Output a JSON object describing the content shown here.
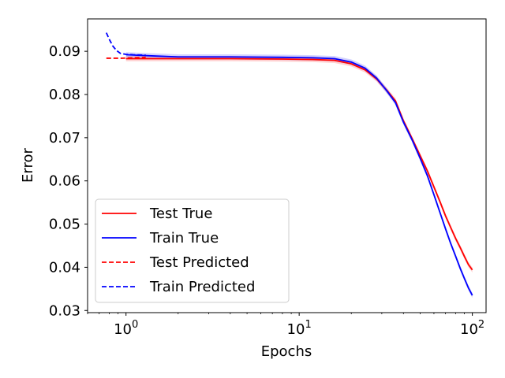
{
  "chart_data": {
    "type": "line",
    "title": "",
    "xlabel": "Epochs",
    "ylabel": "Error",
    "xscale": "log",
    "xlim": [
      0.6,
      120
    ],
    "ylim": [
      0.0295,
      0.0975
    ],
    "x_ticks": [
      {
        "value": 1,
        "base": "10",
        "exp": "0"
      },
      {
        "value": 10,
        "base": "10",
        "exp": "1"
      },
      {
        "value": 100,
        "base": "10",
        "exp": "2"
      }
    ],
    "y_ticks": [
      {
        "value": 0.03,
        "label": "0.03"
      },
      {
        "value": 0.04,
        "label": "0.04"
      },
      {
        "value": 0.05,
        "label": "0.05"
      },
      {
        "value": 0.06,
        "label": "0.06"
      },
      {
        "value": 0.07,
        "label": "0.07"
      },
      {
        "value": 0.08,
        "label": "0.08"
      },
      {
        "value": 0.09,
        "label": "0.09"
      }
    ],
    "grid": false,
    "legend_position": "lower-left",
    "series": [
      {
        "name": "Test True",
        "color": "#ff0000",
        "style": "solid",
        "x": [
          1,
          2,
          4,
          8,
          12,
          16,
          20,
          24,
          28,
          32,
          36,
          40,
          45,
          50,
          55,
          60,
          65,
          70,
          75,
          80,
          85,
          90,
          95,
          100
        ],
        "y": [
          0.0883,
          0.0883,
          0.0883,
          0.0882,
          0.0881,
          0.0879,
          0.0871,
          0.0857,
          0.0836,
          0.081,
          0.0785,
          0.0739,
          0.0697,
          0.0658,
          0.0623,
          0.0586,
          0.0552,
          0.0519,
          0.0492,
          0.0467,
          0.0446,
          0.0425,
          0.0406,
          0.0394
        ]
      },
      {
        "name": "Train True",
        "color": "#0000ff",
        "style": "solid",
        "x": [
          1,
          1.5,
          2,
          4,
          8,
          12,
          16,
          20,
          24,
          28,
          32,
          36,
          40,
          45,
          50,
          55,
          60,
          65,
          70,
          75,
          80,
          85,
          90,
          95,
          100
        ],
        "y": [
          0.0892,
          0.0889,
          0.0887,
          0.0887,
          0.0886,
          0.0885,
          0.0883,
          0.0875,
          0.0861,
          0.0838,
          0.0809,
          0.0781,
          0.0736,
          0.0694,
          0.0652,
          0.0612,
          0.0568,
          0.0527,
          0.0489,
          0.0455,
          0.0426,
          0.0398,
          0.0374,
          0.0352,
          0.0335
        ]
      },
      {
        "name": "Test Predicted",
        "color": "#ff0000",
        "style": "dashed",
        "x": [
          0.77,
          0.85,
          0.95,
          1.1,
          1.3
        ],
        "y": [
          0.0884,
          0.0884,
          0.0884,
          0.0885,
          0.0886
        ]
      },
      {
        "name": "Train Predicted",
        "color": "#0000ff",
        "style": "dashed",
        "x": [
          0.77,
          0.8,
          0.84,
          0.88,
          0.93,
          1.0,
          1.1,
          1.3
        ],
        "y": [
          0.0943,
          0.0928,
          0.0912,
          0.0902,
          0.0895,
          0.0893,
          0.0892,
          0.0891
        ]
      }
    ]
  }
}
